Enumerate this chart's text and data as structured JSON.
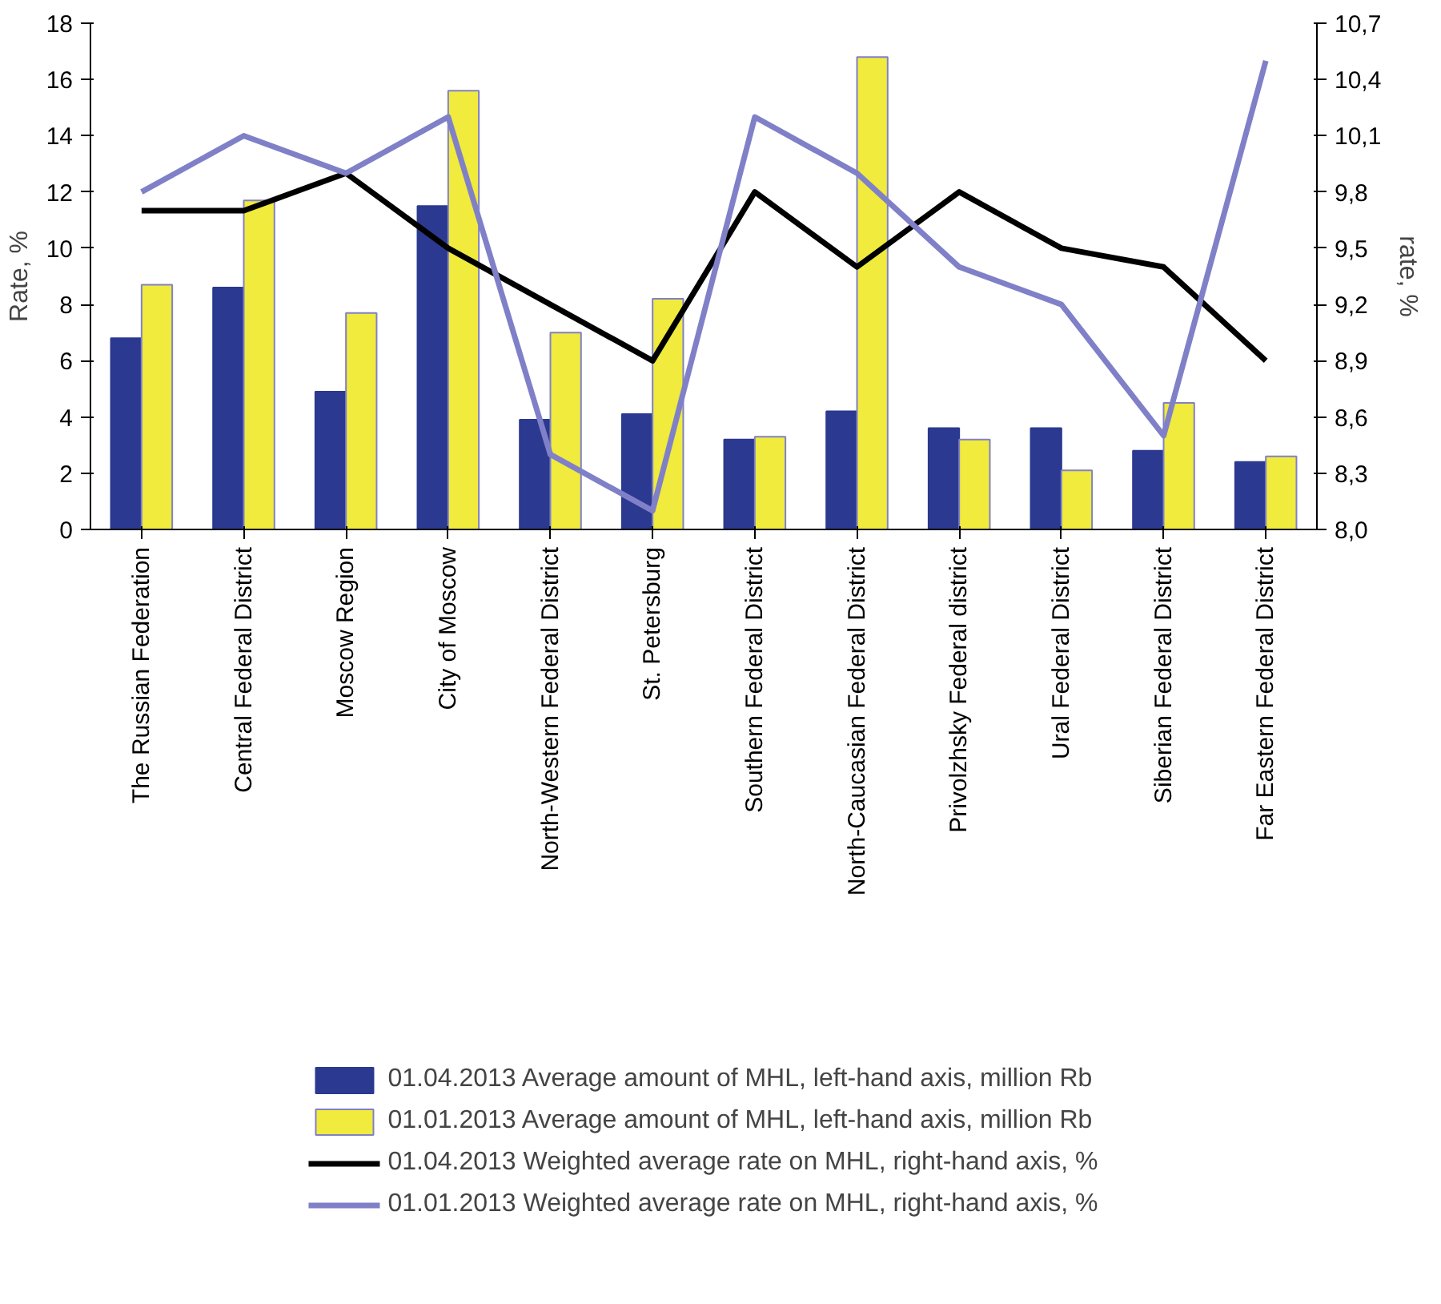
{
  "chart_data": {
    "type": "bar",
    "ylabel": "Rate, %",
    "y2label": "rate, %",
    "categories": [
      "The Russian Federation",
      "Central Federal District",
      "Moscow Region",
      "City of Moscow",
      "North-Western Federal District",
      "St. Petersburg",
      "Southern Federal District",
      "North-Caucasian Federal District",
      "Privolzhsky Federal district",
      "Ural Federal District",
      "Siberian Federal District",
      "Far Eastern Federal District"
    ],
    "series": [
      {
        "name": "01.04.2013 Average amount of MHL, left-hand axis, million Rb",
        "color": "#2b3990",
        "values": [
          6.8,
          8.6,
          4.9,
          11.5,
          3.9,
          4.1,
          3.2,
          4.2,
          3.6,
          3.6,
          2.8,
          2.4
        ]
      },
      {
        "name": "01.01.2013 Average amount of MHL, left-hand axis, million Rb",
        "color": "#f0eb3c",
        "values": [
          8.7,
          11.7,
          7.7,
          15.6,
          7.0,
          8.2,
          3.3,
          16.8,
          3.2,
          2.1,
          4.5,
          2.6
        ]
      },
      {
        "name": "01.04.2013 Weighted average rate on MHL, right-hand axis, %",
        "type": "line",
        "axis": "y2",
        "color": "#000000",
        "values": [
          9.7,
          9.7,
          9.9,
          9.5,
          9.2,
          8.9,
          9.8,
          9.4,
          9.8,
          9.5,
          9.4,
          8.9
        ]
      },
      {
        "name": "01.01.2013 Weighted average rate on MHL, right-hand axis, %",
        "type": "line",
        "axis": "y2",
        "color": "#8080c8",
        "values": [
          9.8,
          10.1,
          9.9,
          10.2,
          8.4,
          8.1,
          10.2,
          9.9,
          9.4,
          9.2,
          8.5,
          10.5
        ]
      }
    ],
    "ylim": [
      0,
      18
    ],
    "yticks": [
      0,
      2,
      4,
      6,
      8,
      10,
      12,
      14,
      16,
      18
    ],
    "y2lim": [
      8.0,
      10.7
    ],
    "y2ticks": [
      {
        "value": 8.0,
        "label": "8,0"
      },
      {
        "value": 8.3,
        "label": "8,3"
      },
      {
        "value": 8.6,
        "label": "8,6"
      },
      {
        "value": 8.9,
        "label": "8,9"
      },
      {
        "value": 9.2,
        "label": "9,2"
      },
      {
        "value": 9.5,
        "label": "9,5"
      },
      {
        "value": 9.8,
        "label": "9,8"
      },
      {
        "value": 10.1,
        "label": "10,1"
      },
      {
        "value": 10.4,
        "label": "10,4"
      },
      {
        "value": 10.7,
        "label": "10,7"
      }
    ],
    "grid": false,
    "legend": "bottom",
    "marker": "none",
    "line_style": "solid"
  }
}
